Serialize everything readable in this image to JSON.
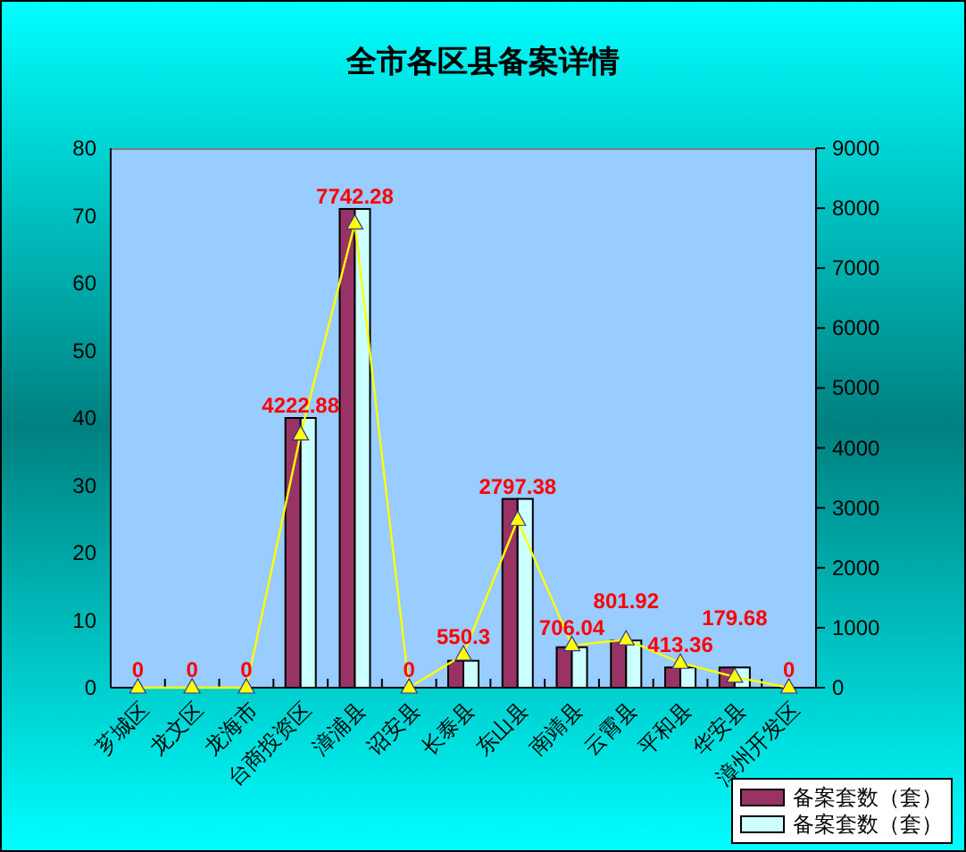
{
  "chart_data": {
    "type": "bar",
    "title": "全市各区县备案详情",
    "categories": [
      "芗城区",
      "龙文区",
      "龙海市",
      "台商投资区",
      "漳浦县",
      "诏安县",
      "长泰县",
      "东山县",
      "南靖县",
      "云霄县",
      "平和县",
      "华安县",
      "漳州开发区"
    ],
    "series": [
      {
        "name": "备案套数（套）",
        "color": "#993366",
        "values": [
          0,
          0,
          0,
          40,
          71,
          0,
          4,
          28,
          6,
          7,
          3,
          3,
          0
        ]
      },
      {
        "name": "备案套数（套）",
        "color": "#ccffff",
        "values": [
          0,
          0,
          0,
          40,
          71,
          0,
          4,
          28,
          6,
          7,
          3,
          3,
          0
        ]
      },
      {
        "type": "line",
        "axis": "y2",
        "color": "#ffff00",
        "marker": "triangle",
        "values": [
          0,
          0,
          0,
          4222.88,
          7742.28,
          0,
          550.3,
          2797.38,
          706.04,
          801.92,
          413.36,
          179.68,
          0
        ],
        "value_labels": [
          "0",
          "0",
          "0",
          "4222.88",
          "7742.28",
          "0",
          "550.3",
          "2797.38",
          "706.04",
          "801.92",
          "413.36",
          "179.68",
          "0"
        ]
      }
    ],
    "ylim": [
      0,
      80
    ],
    "yticks": [
      0,
      10,
      20,
      30,
      40,
      50,
      60,
      70,
      80
    ],
    "y2lim": [
      0,
      9000
    ],
    "y2ticks": [
      0,
      1000,
      2000,
      3000,
      4000,
      5000,
      6000,
      7000,
      8000,
      9000
    ],
    "legend": "bottom right"
  }
}
